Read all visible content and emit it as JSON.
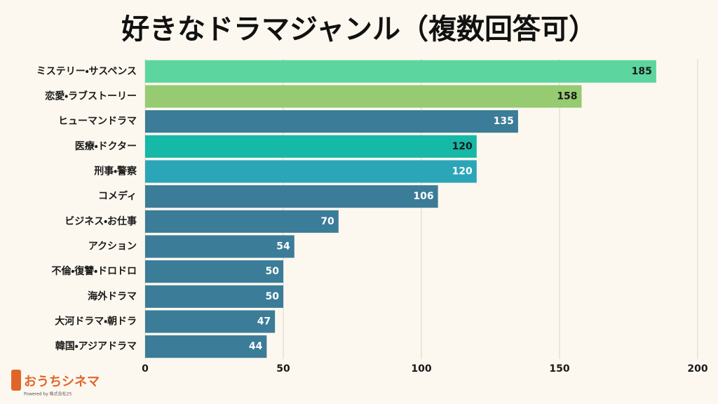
{
  "chart_data": {
    "type": "barh",
    "title": "好きなドラマジャンル（複数回答可）",
    "categories": [
      "ミステリー・サスペンス",
      "恋愛・ラブストーリー",
      "ヒューマンドラマ",
      "医療・ドクター",
      "刑事・警察",
      "コメディ",
      "ビジネス・お仕事",
      "アクション",
      "不倫・復讐・ドロドロ",
      "海外ドラマ",
      "大河ドラマ・朝ドラ",
      "韓国・アジアドラマ"
    ],
    "values": [
      185,
      158,
      135,
      120,
      120,
      106,
      70,
      54,
      50,
      50,
      47,
      44
    ],
    "colors": [
      "#5dd59f",
      "#96cb72",
      "#3b7c98",
      "#16b8a6",
      "#2aa6b8",
      "#3b7c98",
      "#3b7c98",
      "#3b7c98",
      "#3b7c98",
      "#3b7c98",
      "#3b7c98",
      "#3b7c98"
    ],
    "value_label_colors": [
      "#1a1a1a",
      "#1a1a1a",
      "#ffffff",
      "#1a1a1a",
      "#ffffff",
      "#ffffff",
      "#ffffff",
      "#ffffff",
      "#ffffff",
      "#ffffff",
      "#ffffff",
      "#ffffff"
    ],
    "xlim": [
      0,
      200
    ],
    "xticks": [
      0,
      50,
      100,
      150,
      200
    ],
    "grid": true
  },
  "logo": {
    "name": "おうちシネマ",
    "tagline": "Powered by 株式会社25"
  }
}
